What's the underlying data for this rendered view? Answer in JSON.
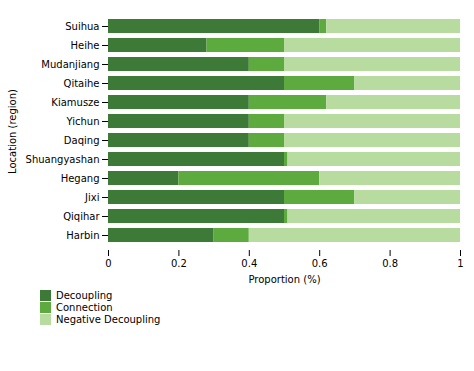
{
  "chart_data": {
    "type": "bar",
    "orientation": "horizontal",
    "stacked": true,
    "categories": [
      "Suihua",
      "Heihe",
      "Mudanjiang",
      "Qitaihe",
      "Kiamusze",
      "Yichun",
      "Daqing",
      "Shuangyashan",
      "Hegang",
      "Jixi",
      "Qiqihar",
      "Harbin"
    ],
    "series": [
      {
        "name": "Decoupling",
        "color": "#3d7a38",
        "values": [
          0.6,
          0.28,
          0.4,
          0.5,
          0.4,
          0.4,
          0.4,
          0.5,
          0.2,
          0.5,
          0.5,
          0.3
        ]
      },
      {
        "name": "Connection",
        "color": "#5dab3e",
        "values": [
          0.02,
          0.22,
          0.1,
          0.2,
          0.22,
          0.1,
          0.1,
          0.01,
          0.4,
          0.2,
          0.01,
          0.1
        ]
      },
      {
        "name": "Negative Decoupling",
        "color": "#b8dba0",
        "values": [
          0.38,
          0.5,
          0.5,
          0.3,
          0.38,
          0.5,
          0.5,
          0.49,
          0.4,
          0.3,
          0.49,
          0.6
        ]
      }
    ],
    "xlabel": "Proportion (%)",
    "ylabel": "Location (region)",
    "xlim": [
      0,
      1
    ],
    "xticks": [
      0,
      0.2,
      0.4,
      0.6,
      0.8,
      1
    ],
    "grid": false,
    "legend": "bottom"
  }
}
